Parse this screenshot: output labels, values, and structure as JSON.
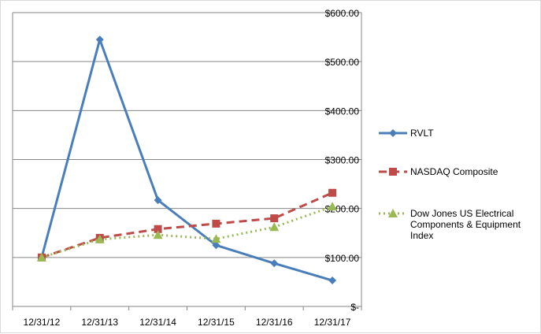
{
  "chart_data": {
    "type": "line",
    "categories": [
      "12/31/12",
      "12/31/13",
      "12/31/14",
      "12/31/15",
      "12/31/16",
      "12/31/17"
    ],
    "y_ticks": [
      "$-",
      "$100.00",
      "$200.00",
      "$300.00",
      "$400.00",
      "$500.00",
      "$600.00"
    ],
    "ylim": [
      0,
      600
    ],
    "grid": true,
    "legend_position": "right",
    "series": [
      {
        "name": "RVLT",
        "values": [
          100,
          545,
          217,
          125,
          88,
          53
        ],
        "color": "#4a7ebb",
        "marker": "diamond",
        "dash": "solid"
      },
      {
        "name": "NASDAQ Composite",
        "values": [
          100,
          140,
          158,
          169,
          180,
          232
        ],
        "color": "#be4b48",
        "marker": "square",
        "dash": "dashed"
      },
      {
        "name": "Dow Jones US Electrical Components & Equipment Index",
        "values": [
          100,
          137,
          146,
          138,
          162,
          204
        ],
        "color": "#98b954",
        "marker": "triangle",
        "dash": "dotted"
      }
    ]
  }
}
